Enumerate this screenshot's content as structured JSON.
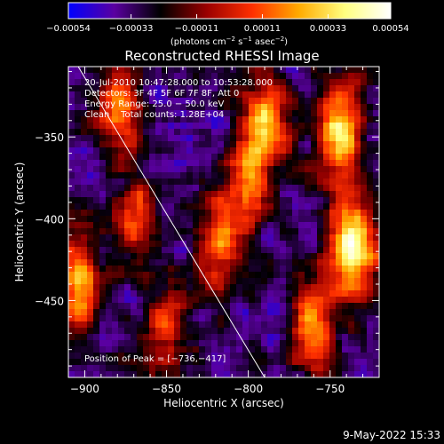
{
  "chart_data": {
    "type": "heatmap",
    "title": "Reconstructed RHESSI Image",
    "xlabel": "Heliocentric X (arcsec)",
    "ylabel": "Heliocentric Y (arcsec)",
    "xlim": [
      -910,
      -720
    ],
    "ylim": [
      -497,
      -307
    ],
    "x_ticks": [
      -900,
      -850,
      -800,
      -750
    ],
    "y_ticks": [
      -350,
      -400,
      -450
    ],
    "x_tick_labels": [
      "−900",
      "−850",
      "−800",
      "−750"
    ],
    "y_tick_labels": [
      "−350",
      "−400",
      "−450"
    ],
    "colorbar": {
      "range": [
        -0.00054,
        0.00054
      ],
      "ticks": [
        -0.00054,
        -0.00033,
        -0.00011,
        0.00011,
        0.00033,
        0.00054
      ],
      "tick_labels": [
        "−0.00054",
        "−0.00033",
        "−0.00011",
        "0.00011",
        "0.00033",
        "0.00054"
      ],
      "units_label": {
        "part1": "(photons cm",
        "sup1": "−2",
        "part2": " s",
        "sup2": "−1",
        "part3": " asec",
        "sup3": "−2",
        "part4": ")"
      },
      "colors": [
        "#0000ff",
        "#5a00a0",
        "#000000",
        "#9a0000",
        "#ff3000",
        "#ffaa00",
        "#ffff80",
        "#ffffff"
      ]
    },
    "info_lines": [
      "20-Jul-2010 10:47:28.000 to 10:53:28.000",
      "Detectors: 3F 4F 5F 6F 7F 8F, Att 0",
      "Energy Range: 25.0 − 50.0 keV",
      "Clean    Total counts: 1.28E+04"
    ],
    "peak_label": "Position of Peak = [−736,−417]",
    "peak_position": [
      -736,
      -417
    ],
    "limb_line": [
      [
        -904,
        -307
      ],
      [
        -790,
        -497
      ]
    ],
    "hot_regions": [
      {
        "x": -736,
        "y": -417,
        "intensity": 1.0
      },
      {
        "x": -745,
        "y": -345,
        "intensity": 0.85
      },
      {
        "x": -790,
        "y": -340,
        "intensity": 0.7
      },
      {
        "x": -760,
        "y": -465,
        "intensity": 0.7
      },
      {
        "x": -905,
        "y": -440,
        "intensity": 0.75
      },
      {
        "x": -880,
        "y": -330,
        "intensity": 0.55
      },
      {
        "x": -820,
        "y": -415,
        "intensity": 0.5
      },
      {
        "x": -870,
        "y": -400,
        "intensity": 0.45
      },
      {
        "x": -850,
        "y": -470,
        "intensity": 0.45
      },
      {
        "x": -800,
        "y": -380,
        "intensity": 0.6
      }
    ],
    "timestamp": "9-May-2022 15:33"
  }
}
